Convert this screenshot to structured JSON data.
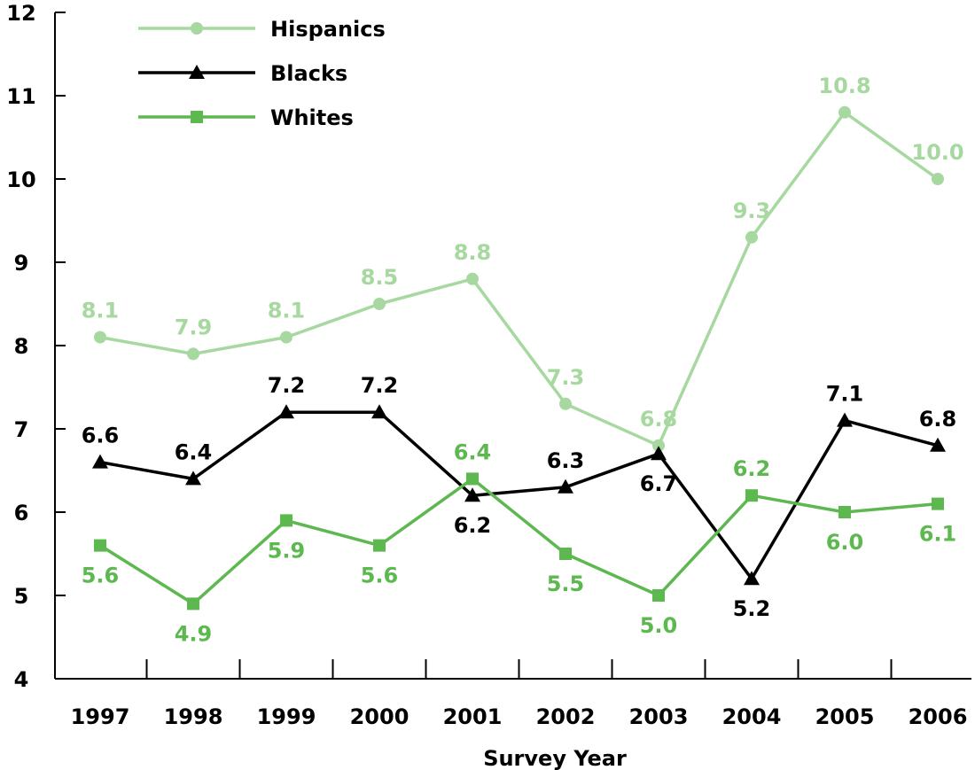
{
  "colors": {
    "Hispanics": "#a6d8a0",
    "Blacks": "#000000",
    "Whites": "#5cb84f"
  },
  "chart_data": {
    "type": "line",
    "title": "",
    "xlabel": "Survey Year",
    "ylabel": "",
    "categories": [
      "1997",
      "1998",
      "1999",
      "2000",
      "2001",
      "2002",
      "2003",
      "2004",
      "2005",
      "2006"
    ],
    "ylim": [
      4,
      12
    ],
    "y_ticks": [
      "4",
      "5",
      "6",
      "7",
      "8",
      "9",
      "10",
      "11",
      "12"
    ],
    "grid": false,
    "legend_position": "top-left",
    "series": [
      {
        "name": "Hispanics",
        "marker": "circle",
        "values": [
          8.1,
          7.9,
          8.1,
          8.5,
          8.8,
          7.3,
          6.8,
          9.3,
          10.8,
          10.0
        ],
        "labels": [
          "8.1",
          "7.9",
          "8.1",
          "8.5",
          "8.8",
          "7.3",
          "6.8",
          "9.3",
          "10.8",
          "10.0"
        ]
      },
      {
        "name": "Blacks",
        "marker": "triangle",
        "values": [
          6.6,
          6.4,
          7.2,
          7.2,
          6.2,
          6.3,
          6.7,
          5.2,
          7.1,
          6.8
        ],
        "labels": [
          "6.6",
          "6.4",
          "7.2",
          "7.2",
          "6.2",
          "6.3",
          "6.7",
          "5.2",
          "7.1",
          "6.8"
        ]
      },
      {
        "name": "Whites",
        "marker": "square",
        "values": [
          5.6,
          4.9,
          5.9,
          5.6,
          6.4,
          5.5,
          5.0,
          6.2,
          6.0,
          6.1
        ],
        "labels": [
          "5.6",
          "4.9",
          "5.9",
          "5.6",
          "6.4",
          "5.5",
          "5.0",
          "6.2",
          "6.0",
          "6.1"
        ]
      }
    ]
  }
}
